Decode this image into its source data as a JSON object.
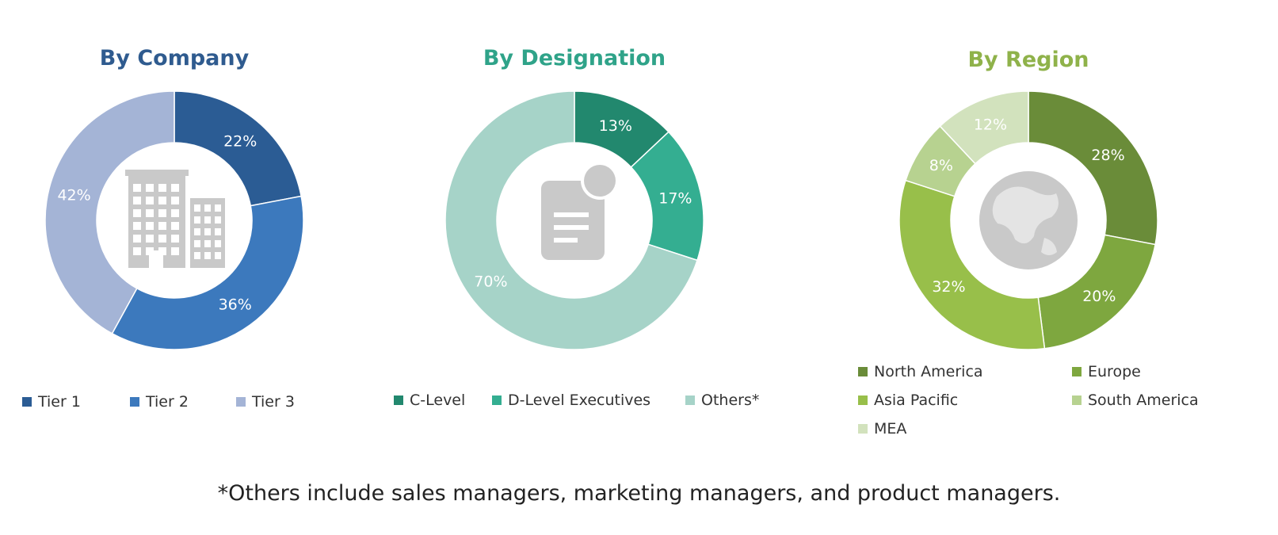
{
  "chart_data": [
    {
      "type": "pie",
      "title": "By Company",
      "title_color": "#2f5b8f",
      "center_icon": "building-icon",
      "categories": [
        "Tier 1",
        "Tier 2",
        "Tier 3"
      ],
      "values": [
        22,
        36,
        42
      ],
      "labels": [
        "22%",
        "36%",
        "42%"
      ],
      "colors": [
        "#2b5c94",
        "#3c79bd",
        "#a4b4d6"
      ],
      "legend": "bottom"
    },
    {
      "type": "pie",
      "title": "By Designation",
      "title_color": "#2fa389",
      "center_icon": "document-icon",
      "categories": [
        "C-Level",
        "D-Level Executives",
        "Others*"
      ],
      "values": [
        13,
        17,
        70
      ],
      "labels": [
        "13%",
        "17%",
        "70%"
      ],
      "colors": [
        "#22886e",
        "#34ae91",
        "#a6d3c8"
      ],
      "legend": "bottom"
    },
    {
      "type": "pie",
      "title": "By Region",
      "title_color": "#8fb24a",
      "center_icon": "globe-icon",
      "categories": [
        "North America",
        "Europe",
        "Asia Pacific",
        "South America",
        "MEA"
      ],
      "values": [
        28,
        20,
        32,
        8,
        12
      ],
      "labels": [
        "28%",
        "20%",
        "32%",
        "8%",
        "12%"
      ],
      "colors": [
        "#6a8c39",
        "#7ea73f",
        "#98bf4a",
        "#b7d290",
        "#d2e2bd"
      ],
      "legend": "bottom"
    }
  ],
  "footnote": "*Others include sales managers, marketing managers, and product managers."
}
